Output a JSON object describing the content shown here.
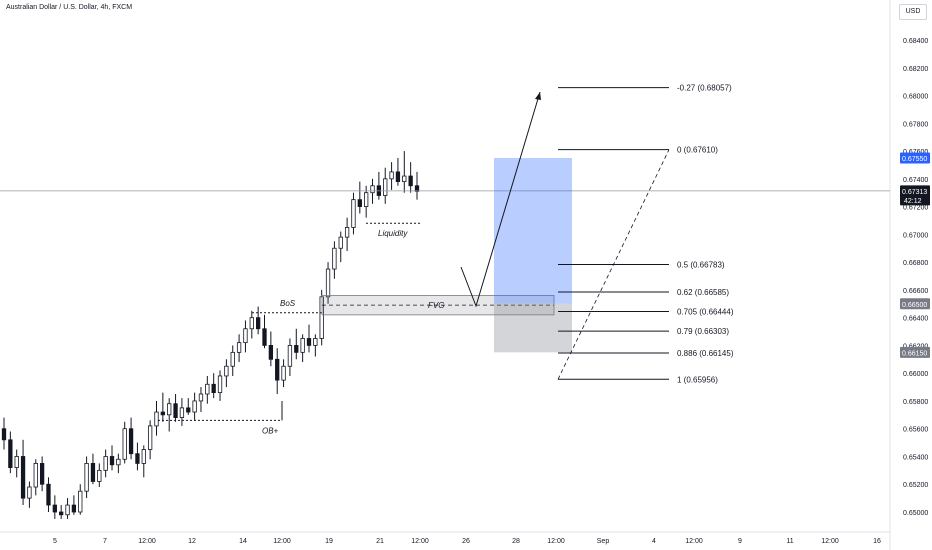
{
  "header": {
    "title": "Australian Dollar / U.S. Dollar, 4h, FXCM",
    "currency": "USD"
  },
  "chart_data": {
    "type": "candlestick",
    "symbol": "AUDUSD",
    "timeframe": "4h",
    "ylim": [
      0.6488,
      0.6853
    ],
    "y_ticks": [
      "0.68400",
      "0.68200",
      "0.68000",
      "0.67800",
      "0.67600",
      "0.67400",
      "0.67200",
      "0.67000",
      "0.66800",
      "0.66600",
      "0.66400",
      "0.66200",
      "0.66000",
      "0.65800",
      "0.65600",
      "0.65400",
      "0.65200",
      "0.65000"
    ],
    "x_ticks": [
      "5",
      "7",
      "12:00",
      "12",
      "14",
      "12:00",
      "19",
      "21",
      "12:00",
      "26",
      "28",
      "12:00",
      "Sep",
      "4",
      "12:00",
      "9",
      "11",
      "12:00",
      "16"
    ],
    "candles": [
      [
        0.656,
        0.6568,
        0.6545,
        0.6552
      ],
      [
        0.6552,
        0.6558,
        0.6528,
        0.6532
      ],
      [
        0.6532,
        0.6545,
        0.6525,
        0.654
      ],
      [
        0.654,
        0.6552,
        0.6505,
        0.651
      ],
      [
        0.651,
        0.6522,
        0.6503,
        0.6518
      ],
      [
        0.6518,
        0.6538,
        0.6512,
        0.6535
      ],
      [
        0.6535,
        0.654,
        0.6515,
        0.652
      ],
      [
        0.652,
        0.6525,
        0.65,
        0.6505
      ],
      [
        0.6505,
        0.6512,
        0.6495,
        0.65
      ],
      [
        0.65,
        0.6505,
        0.6495,
        0.6498
      ],
      [
        0.6498,
        0.651,
        0.6495,
        0.6505
      ],
      [
        0.6505,
        0.6512,
        0.6498,
        0.65
      ],
      [
        0.65,
        0.652,
        0.6498,
        0.6515
      ],
      [
        0.6515,
        0.654,
        0.651,
        0.6535
      ],
      [
        0.6535,
        0.6542,
        0.652,
        0.6522
      ],
      [
        0.6522,
        0.6535,
        0.6518,
        0.653
      ],
      [
        0.653,
        0.6545,
        0.6525,
        0.654
      ],
      [
        0.654,
        0.6548,
        0.653,
        0.6534
      ],
      [
        0.6534,
        0.6542,
        0.6528,
        0.6538
      ],
      [
        0.6538,
        0.6565,
        0.6535,
        0.656
      ],
      [
        0.656,
        0.6568,
        0.6538,
        0.6542
      ],
      [
        0.6542,
        0.655,
        0.653,
        0.6535
      ],
      [
        0.6535,
        0.6548,
        0.6525,
        0.6545
      ],
      [
        0.6545,
        0.6566,
        0.6538,
        0.6562
      ],
      [
        0.6562,
        0.658,
        0.6555,
        0.6572
      ],
      [
        0.6572,
        0.6586,
        0.6565,
        0.657
      ],
      [
        0.657,
        0.6582,
        0.6558,
        0.6578
      ],
      [
        0.6578,
        0.6585,
        0.6565,
        0.6568
      ],
      [
        0.6568,
        0.6582,
        0.6562,
        0.6575
      ],
      [
        0.6575,
        0.6582,
        0.657,
        0.6572
      ],
      [
        0.6572,
        0.6586,
        0.6566,
        0.658
      ],
      [
        0.658,
        0.659,
        0.6572,
        0.6585
      ],
      [
        0.6585,
        0.6598,
        0.6578,
        0.6592
      ],
      [
        0.6592,
        0.66,
        0.6582,
        0.6586
      ],
      [
        0.6586,
        0.6602,
        0.658,
        0.6598
      ],
      [
        0.6598,
        0.661,
        0.659,
        0.6605
      ],
      [
        0.6605,
        0.662,
        0.6598,
        0.6615
      ],
      [
        0.6615,
        0.6628,
        0.6608,
        0.6622
      ],
      [
        0.6622,
        0.6638,
        0.6615,
        0.6632
      ],
      [
        0.6632,
        0.6645,
        0.6625,
        0.664
      ],
      [
        0.664,
        0.6648,
        0.6628,
        0.6632
      ],
      [
        0.6632,
        0.6642,
        0.6618,
        0.662
      ],
      [
        0.662,
        0.663,
        0.6605,
        0.661
      ],
      [
        0.661,
        0.6618,
        0.6585,
        0.6595
      ],
      [
        0.6595,
        0.661,
        0.659,
        0.6605
      ],
      [
        0.6605,
        0.6625,
        0.6598,
        0.662
      ],
      [
        0.662,
        0.6632,
        0.661,
        0.6615
      ],
      [
        0.6615,
        0.6628,
        0.6608,
        0.6625
      ],
      [
        0.6625,
        0.6635,
        0.6615,
        0.662
      ],
      [
        0.662,
        0.6628,
        0.6612,
        0.6625
      ],
      [
        0.6625,
        0.666,
        0.662,
        0.6655
      ],
      [
        0.6655,
        0.668,
        0.665,
        0.6675
      ],
      [
        0.6675,
        0.6695,
        0.6668,
        0.669
      ],
      [
        0.669,
        0.6702,
        0.668,
        0.6698
      ],
      [
        0.6698,
        0.6712,
        0.6688,
        0.6705
      ],
      [
        0.6705,
        0.673,
        0.67,
        0.6725
      ],
      [
        0.6725,
        0.6738,
        0.6715,
        0.672
      ],
      [
        0.672,
        0.6735,
        0.6712,
        0.673
      ],
      [
        0.673,
        0.674,
        0.6722,
        0.6735
      ],
      [
        0.6735,
        0.6745,
        0.6725,
        0.6728
      ],
      [
        0.6728,
        0.6748,
        0.6722,
        0.674
      ],
      [
        0.674,
        0.6752,
        0.6732,
        0.6745
      ],
      [
        0.6745,
        0.6755,
        0.6735,
        0.6738
      ],
      [
        0.6738,
        0.676,
        0.673,
        0.6742
      ],
      [
        0.6742,
        0.6752,
        0.673,
        0.6735
      ],
      [
        0.6735,
        0.6745,
        0.6725,
        0.6731
      ]
    ],
    "horizontal_line": 0.67313,
    "price_labels": [
      {
        "text": "0.67550",
        "value": 0.6755,
        "color": "#2962ff",
        "text_color": "#ffffff"
      },
      {
        "text": "0.67313",
        "value": 0.67313,
        "sub": "42:12",
        "color": "#131722",
        "text_color": "#ffffff"
      },
      {
        "text": "0.66500",
        "value": 0.665,
        "color": "#787b86",
        "text_color": "#ffffff"
      },
      {
        "text": "0.66150",
        "value": 0.6615,
        "color": "#787b86",
        "text_color": "#ffffff"
      }
    ],
    "fib_levels": [
      {
        "label": "-0.27 (0.68057)",
        "value": 0.68057
      },
      {
        "label": "0 (0.67610)",
        "value": 0.6761
      },
      {
        "label": "0.5 (0.66783)",
        "value": 0.66783
      },
      {
        "label": "0.62 (0.66585)",
        "value": 0.66585
      },
      {
        "label": "0.705 (0.66444)",
        "value": 0.66444
      },
      {
        "label": "0.79 (0.66303)",
        "value": 0.66303
      },
      {
        "label": "0.886 (0.66145)",
        "value": 0.66145
      },
      {
        "label": "1 (0.65956)",
        "value": 0.65956
      }
    ],
    "annotations": {
      "liquidity": "Liquidity",
      "bos": "BoS",
      "fvg": "FVG",
      "ob": "OB+"
    },
    "zones": {
      "fvg_top": 0.6656,
      "fvg_bottom": 0.6642,
      "target_top": 0.6755,
      "target_bottom": 0.665,
      "stop_top": 0.665,
      "stop_bottom": 0.6615
    },
    "colors": {
      "up": "#ffffff",
      "down": "#131722",
      "outline": "#131722",
      "target": "#2962ff",
      "stop": "#787b86"
    }
  }
}
